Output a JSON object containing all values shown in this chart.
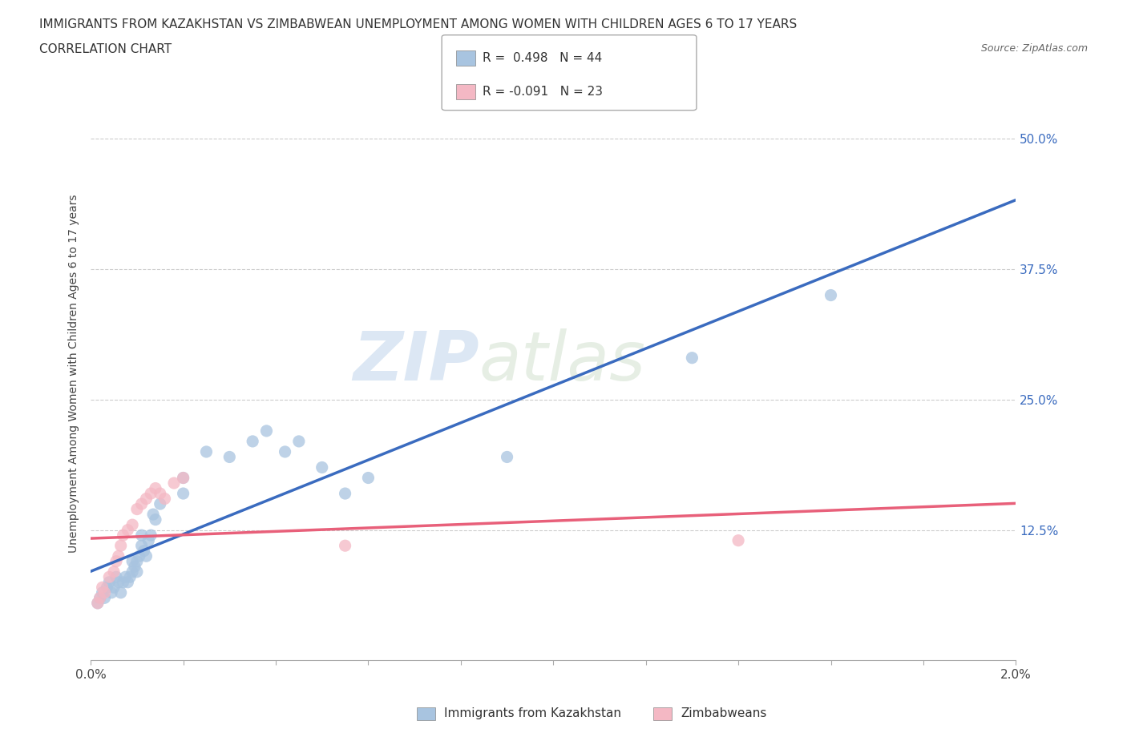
{
  "title_line1": "IMMIGRANTS FROM KAZAKHSTAN VS ZIMBABWEAN UNEMPLOYMENT AMONG WOMEN WITH CHILDREN AGES 6 TO 17 YEARS",
  "title_line2": "CORRELATION CHART",
  "source_text": "Source: ZipAtlas.com",
  "ylabel": "Unemployment Among Women with Children Ages 6 to 17 years",
  "xlim": [
    0.0,
    0.02
  ],
  "ylim": [
    0.0,
    0.55
  ],
  "xticks": [
    0.0,
    0.002,
    0.004,
    0.006,
    0.008,
    0.01,
    0.012,
    0.014,
    0.016,
    0.018,
    0.02
  ],
  "xticklabels": [
    "0.0%",
    "",
    "",
    "",
    "",
    "",
    "",
    "",
    "",
    "",
    "2.0%"
  ],
  "yticks": [
    0.0,
    0.125,
    0.25,
    0.375,
    0.5
  ],
  "yticklabels": [
    "",
    "12.5%",
    "25.0%",
    "37.5%",
    "50.0%"
  ],
  "grid_color": "#cccccc",
  "background_color": "#ffffff",
  "legend_R1": "R =  0.498",
  "legend_N1": "N = 44",
  "legend_R2": "R = -0.091",
  "legend_N2": "N = 23",
  "blue_color": "#a8c4e0",
  "pink_color": "#f4b8c4",
  "blue_line_color": "#3a6bbf",
  "pink_line_color": "#e8607a",
  "watermark_zip": "ZIP",
  "watermark_atlas": "atlas",
  "kazakhstan_x": [
    0.00015,
    0.0002,
    0.00025,
    0.0003,
    0.00035,
    0.0004,
    0.00045,
    0.0005,
    0.00055,
    0.0006,
    0.00065,
    0.0007,
    0.00075,
    0.0008,
    0.00085,
    0.0009,
    0.0009,
    0.00095,
    0.001,
    0.001,
    0.00105,
    0.0011,
    0.0011,
    0.00115,
    0.0012,
    0.00125,
    0.0013,
    0.00135,
    0.0014,
    0.0015,
    0.002,
    0.002,
    0.0025,
    0.003,
    0.0035,
    0.0038,
    0.0042,
    0.0045,
    0.005,
    0.0055,
    0.006,
    0.009,
    0.013,
    0.016
  ],
  "kazakhstan_y": [
    0.055,
    0.06,
    0.065,
    0.06,
    0.07,
    0.075,
    0.065,
    0.07,
    0.08,
    0.075,
    0.065,
    0.075,
    0.08,
    0.075,
    0.08,
    0.085,
    0.095,
    0.09,
    0.085,
    0.095,
    0.1,
    0.11,
    0.12,
    0.105,
    0.1,
    0.115,
    0.12,
    0.14,
    0.135,
    0.15,
    0.16,
    0.175,
    0.2,
    0.195,
    0.21,
    0.22,
    0.2,
    0.21,
    0.185,
    0.16,
    0.175,
    0.195,
    0.29,
    0.35
  ],
  "zimbabwe_x": [
    0.00015,
    0.0002,
    0.00025,
    0.0003,
    0.0004,
    0.0005,
    0.00055,
    0.0006,
    0.00065,
    0.0007,
    0.0008,
    0.0009,
    0.001,
    0.0011,
    0.0012,
    0.0013,
    0.0014,
    0.0015,
    0.0016,
    0.0018,
    0.002,
    0.0055,
    0.014
  ],
  "zimbabwe_y": [
    0.055,
    0.06,
    0.07,
    0.065,
    0.08,
    0.085,
    0.095,
    0.1,
    0.11,
    0.12,
    0.125,
    0.13,
    0.145,
    0.15,
    0.155,
    0.16,
    0.165,
    0.16,
    0.155,
    0.17,
    0.175,
    0.11,
    0.115
  ]
}
